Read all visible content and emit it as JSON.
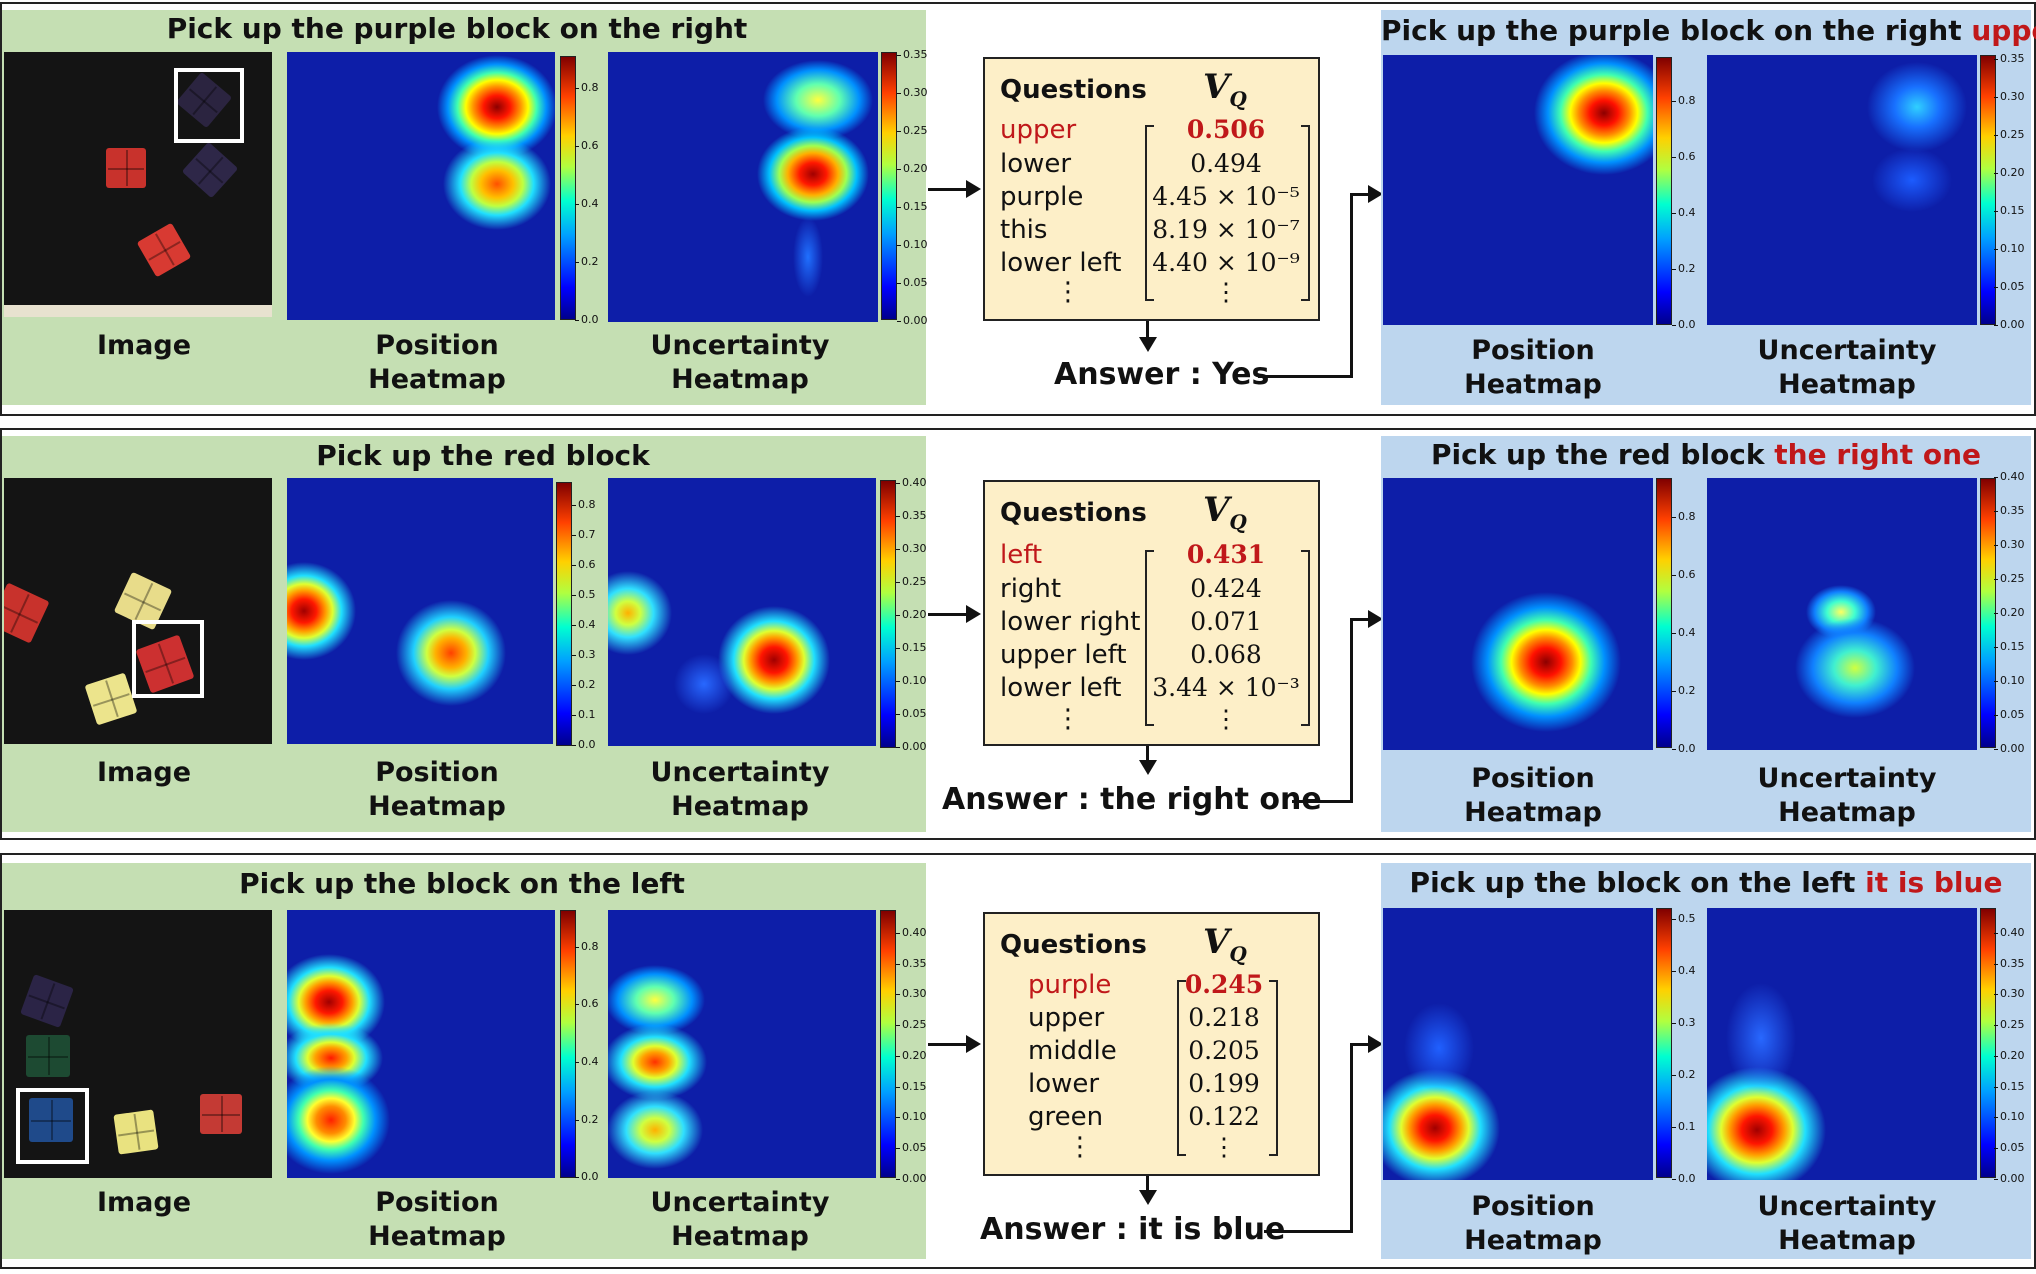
{
  "colors": {
    "green_panel": "#c5dfb3",
    "blue_panel": "#bdd6ee",
    "question_box": "#fdefc8",
    "highlight": "#c0181a"
  },
  "labels": {
    "image": "Image",
    "position_line1": "Position",
    "heatmap_line2": "Heatmap",
    "uncertainty_line1": "Uncertainty"
  },
  "questions_header": "Questions",
  "vq_symbol": "V",
  "vq_subscript": "Q",
  "vdots": "⋮",
  "rows": [
    {
      "instruction": "Pick up the purple block on the right",
      "refined_prefix": "Pick up the purple block on the right",
      "refined_suffix": "upper",
      "answer": "Answer : Yes",
      "questions": [
        "upper",
        "lower",
        "purple",
        "this",
        "lower left"
      ],
      "values": [
        "0.506",
        "0.494",
        "4.45 × 10⁻⁵",
        "8.19 × 10⁻⁷",
        "4.40 × 10⁻⁹"
      ],
      "position_ticks": [
        "0.0",
        "0.2",
        "0.4",
        "0.6",
        "0.8"
      ],
      "uncertainty_ticks": [
        "0.00",
        "0.05",
        "0.10",
        "0.15",
        "0.20",
        "0.25",
        "0.30",
        "0.35"
      ],
      "refined_position_ticks": [
        "0.0",
        "0.2",
        "0.4",
        "0.6",
        "0.8"
      ],
      "refined_uncertainty_ticks": [
        "0.00",
        "0.05",
        "0.10",
        "0.15",
        "0.20",
        "0.25",
        "0.30",
        "0.35"
      ]
    },
    {
      "instruction": "Pick up the red block",
      "refined_prefix": "Pick up the red block",
      "refined_suffix": "the right one",
      "answer": "Answer : the right one",
      "questions": [
        "left",
        "right",
        "lower right",
        "upper left",
        "lower left"
      ],
      "values": [
        "0.431",
        "0.424",
        "0.071",
        "0.068",
        "3.44 × 10⁻³"
      ],
      "position_ticks": [
        "0.0",
        "0.1",
        "0.2",
        "0.3",
        "0.4",
        "0.5",
        "0.6",
        "0.7",
        "0.8"
      ],
      "uncertainty_ticks": [
        "0.00",
        "0.05",
        "0.10",
        "0.15",
        "0.20",
        "0.25",
        "0.30",
        "0.35",
        "0.40"
      ],
      "refined_position_ticks": [
        "0.0",
        "0.2",
        "0.4",
        "0.6",
        "0.8"
      ],
      "refined_uncertainty_ticks": [
        "0.00",
        "0.05",
        "0.10",
        "0.15",
        "0.20",
        "0.25",
        "0.30",
        "0.35",
        "0.40"
      ]
    },
    {
      "instruction": "Pick up the block on the left",
      "refined_prefix": "Pick up the block on the left",
      "refined_suffix": "it is blue",
      "answer": "Answer : it is blue",
      "questions": [
        "purple",
        "upper",
        "middle",
        "lower",
        "green"
      ],
      "values": [
        "0.245",
        "0.218",
        "0.205",
        "0.199",
        "0.122"
      ],
      "position_ticks": [
        "0.0",
        "0.2",
        "0.4",
        "0.6",
        "0.8"
      ],
      "uncertainty_ticks": [
        "0.00",
        "0.05",
        "0.10",
        "0.15",
        "0.20",
        "0.25",
        "0.30",
        "0.35",
        "0.40"
      ],
      "refined_position_ticks": [
        "0.0",
        "0.1",
        "0.2",
        "0.3",
        "0.4",
        "0.5"
      ],
      "refined_uncertainty_ticks": [
        "0.00",
        "0.05",
        "0.10",
        "0.15",
        "0.20",
        "0.25",
        "0.30",
        "0.35",
        "0.40"
      ]
    }
  ]
}
